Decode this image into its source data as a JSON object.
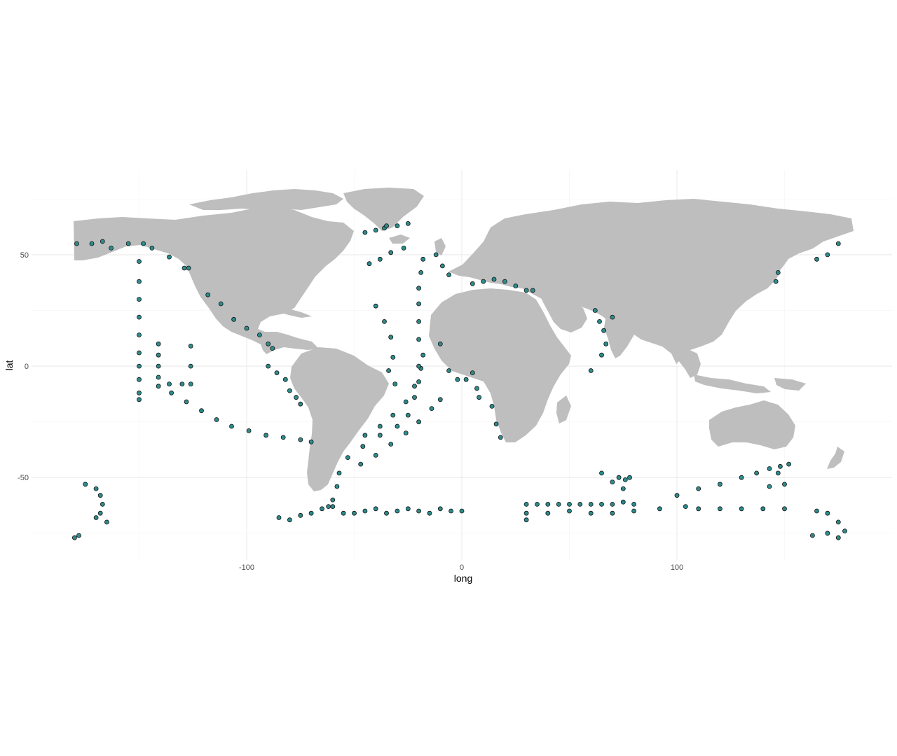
{
  "chart_data": {
    "type": "scatter",
    "title": "",
    "xlabel": "long",
    "ylabel": "lat",
    "xlim": [
      -200,
      200
    ],
    "ylim": [
      -87,
      88
    ],
    "x_ticks": [
      -100,
      0,
      100
    ],
    "y_ticks": [
      -50,
      0,
      50
    ],
    "x_tick_labels": [
      "-100",
      "0",
      "100"
    ],
    "y_tick_labels": [
      "-50",
      "0",
      "50"
    ],
    "grid": true,
    "background": "world-map",
    "colors": {
      "land": "#bebebe",
      "point_fill": "#2e8b8b",
      "point_stroke": "#111111",
      "grid_major": "#ebebeb",
      "grid_minor": "#f4f4f4"
    },
    "series": [
      {
        "points": [
          [
            -179,
            55
          ],
          [
            -172,
            55
          ],
          [
            -167,
            56
          ],
          [
            -163,
            53
          ],
          [
            -155,
            55
          ],
          [
            -148,
            55
          ],
          [
            -144,
            53
          ],
          [
            -136,
            49
          ],
          [
            -129,
            44
          ],
          [
            -127,
            44
          ],
          [
            -118,
            32
          ],
          [
            -112,
            28
          ],
          [
            -106,
            21
          ],
          [
            -100,
            17
          ],
          [
            -94,
            14
          ],
          [
            -90,
            10
          ],
          [
            -88,
            8
          ],
          [
            -90,
            0
          ],
          [
            -86,
            -3
          ],
          [
            -82,
            -6
          ],
          [
            -80,
            -11
          ],
          [
            -77,
            -14
          ],
          [
            -75,
            -17
          ],
          [
            -150,
            47
          ],
          [
            -150,
            38
          ],
          [
            -150,
            30
          ],
          [
            -150,
            22
          ],
          [
            -150,
            14
          ],
          [
            -150,
            6
          ],
          [
            -150,
            0
          ],
          [
            -150,
            -6
          ],
          [
            -150,
            -12
          ],
          [
            -150,
            -15
          ],
          [
            -141,
            10
          ],
          [
            -141,
            5
          ],
          [
            -141,
            0
          ],
          [
            -141,
            -5
          ],
          [
            -141,
            -9
          ],
          [
            -136,
            -8
          ],
          [
            -130,
            -8
          ],
          [
            -126,
            -8
          ],
          [
            -126,
            0
          ],
          [
            -126,
            9
          ],
          [
            -135,
            -12
          ],
          [
            -128,
            -16
          ],
          [
            -121,
            -20
          ],
          [
            -114,
            -24
          ],
          [
            -107,
            -27
          ],
          [
            -99,
            -29
          ],
          [
            -91,
            -31
          ],
          [
            -83,
            -32
          ],
          [
            -75,
            -33
          ],
          [
            -70,
            -34
          ],
          [
            -45,
            -31
          ],
          [
            -38,
            -27
          ],
          [
            -32,
            -22
          ],
          [
            -26,
            -16
          ],
          [
            -22,
            -9
          ],
          [
            -19,
            -1
          ],
          [
            -18,
            5
          ],
          [
            -20,
            12
          ],
          [
            -20,
            20
          ],
          [
            -20,
            28
          ],
          [
            -20,
            35
          ],
          [
            -19,
            42
          ],
          [
            -18,
            48
          ],
          [
            -53,
            -41
          ],
          [
            -46,
            -36
          ],
          [
            -38,
            -31
          ],
          [
            -30,
            -27
          ],
          [
            -25,
            -22
          ],
          [
            -22,
            -14
          ],
          [
            -20,
            -7
          ],
          [
            -20,
            0
          ],
          [
            -47,
            -44
          ],
          [
            -40,
            -40
          ],
          [
            -33,
            -35
          ],
          [
            -26,
            -30
          ],
          [
            -20,
            -25
          ],
          [
            -14,
            -19
          ],
          [
            -10,
            -15
          ],
          [
            -57,
            -48
          ],
          [
            -58,
            -54
          ],
          [
            -60,
            -60
          ],
          [
            -62,
            -63
          ],
          [
            -30,
            63
          ],
          [
            -36,
            62
          ],
          [
            -40,
            61
          ],
          [
            -45,
            60
          ],
          [
            -35,
            63
          ],
          [
            -25,
            64
          ],
          [
            -43,
            46
          ],
          [
            -38,
            48
          ],
          [
            -33,
            51
          ],
          [
            -27,
            53
          ],
          [
            -40,
            27
          ],
          [
            -36,
            20
          ],
          [
            -33,
            13
          ],
          [
            -32,
            4
          ],
          [
            -34,
            -2
          ],
          [
            -31,
            -8
          ],
          [
            -12,
            50
          ],
          [
            -9,
            45
          ],
          [
            -6,
            41
          ],
          [
            5,
            37
          ],
          [
            10,
            38
          ],
          [
            15,
            39
          ],
          [
            20,
            38
          ],
          [
            25,
            36
          ],
          [
            30,
            34
          ],
          [
            33,
            34
          ],
          [
            -10,
            10
          ],
          [
            -6,
            -2
          ],
          [
            -2,
            -6
          ],
          [
            2,
            -6
          ],
          [
            5,
            -3
          ],
          [
            7,
            -10
          ],
          [
            8,
            -14
          ],
          [
            14,
            -18
          ],
          [
            16,
            -26
          ],
          [
            18,
            -32
          ],
          [
            62,
            25
          ],
          [
            64,
            20
          ],
          [
            66,
            16
          ],
          [
            70,
            22
          ],
          [
            67,
            10
          ],
          [
            65,
            5
          ],
          [
            60,
            -2
          ],
          [
            -85,
            -68
          ],
          [
            -80,
            -69
          ],
          [
            -75,
            -67
          ],
          [
            -70,
            -66
          ],
          [
            -65,
            -64
          ],
          [
            -60,
            -63
          ],
          [
            -55,
            -66
          ],
          [
            -50,
            -66
          ],
          [
            -45,
            -65
          ],
          [
            -40,
            -64
          ],
          [
            -35,
            -66
          ],
          [
            -30,
            -65
          ],
          [
            -25,
            -64
          ],
          [
            -20,
            -65
          ],
          [
            -15,
            -66
          ],
          [
            -10,
            -64
          ],
          [
            -5,
            -65
          ],
          [
            0,
            -65
          ],
          [
            30,
            -62
          ],
          [
            35,
            -62
          ],
          [
            40,
            -62
          ],
          [
            45,
            -62
          ],
          [
            50,
            -62
          ],
          [
            55,
            -62
          ],
          [
            60,
            -62
          ],
          [
            65,
            -62
          ],
          [
            70,
            -62
          ],
          [
            75,
            -61
          ],
          [
            80,
            -62
          ],
          [
            30,
            -66
          ],
          [
            30,
            -69
          ],
          [
            40,
            -66
          ],
          [
            50,
            -65
          ],
          [
            60,
            -66
          ],
          [
            70,
            -66
          ],
          [
            80,
            -65
          ],
          [
            92,
            -64
          ],
          [
            104,
            -63
          ],
          [
            110,
            -64
          ],
          [
            120,
            -64
          ],
          [
            130,
            -64
          ],
          [
            140,
            -64
          ],
          [
            150,
            -64
          ],
          [
            65,
            -48
          ],
          [
            70,
            -52
          ],
          [
            73,
            -50
          ],
          [
            76,
            -51
          ],
          [
            78,
            -50
          ],
          [
            75,
            -55
          ],
          [
            100,
            -58
          ],
          [
            110,
            -55
          ],
          [
            120,
            -53
          ],
          [
            130,
            -50
          ],
          [
            137,
            -48
          ],
          [
            143,
            -46
          ],
          [
            148,
            -45
          ],
          [
            152,
            -44
          ],
          [
            147,
            -48
          ],
          [
            150,
            -53
          ],
          [
            143,
            -54
          ],
          [
            165,
            -65
          ],
          [
            170,
            -66
          ],
          [
            175,
            -70
          ],
          [
            178,
            -74
          ],
          [
            170,
            -75
          ],
          [
            163,
            -76
          ],
          [
            175,
            -77
          ],
          [
            -175,
            -53
          ],
          [
            -170,
            -55
          ],
          [
            -168,
            -58
          ],
          [
            -167,
            -62
          ],
          [
            -168,
            -66
          ],
          [
            -170,
            -68
          ],
          [
            -165,
            -70
          ],
          [
            -178,
            -76
          ],
          [
            -180,
            -77
          ],
          [
            165,
            48
          ],
          [
            170,
            50
          ],
          [
            175,
            55
          ],
          [
            147,
            42
          ],
          [
            146,
            38
          ]
        ]
      }
    ]
  }
}
